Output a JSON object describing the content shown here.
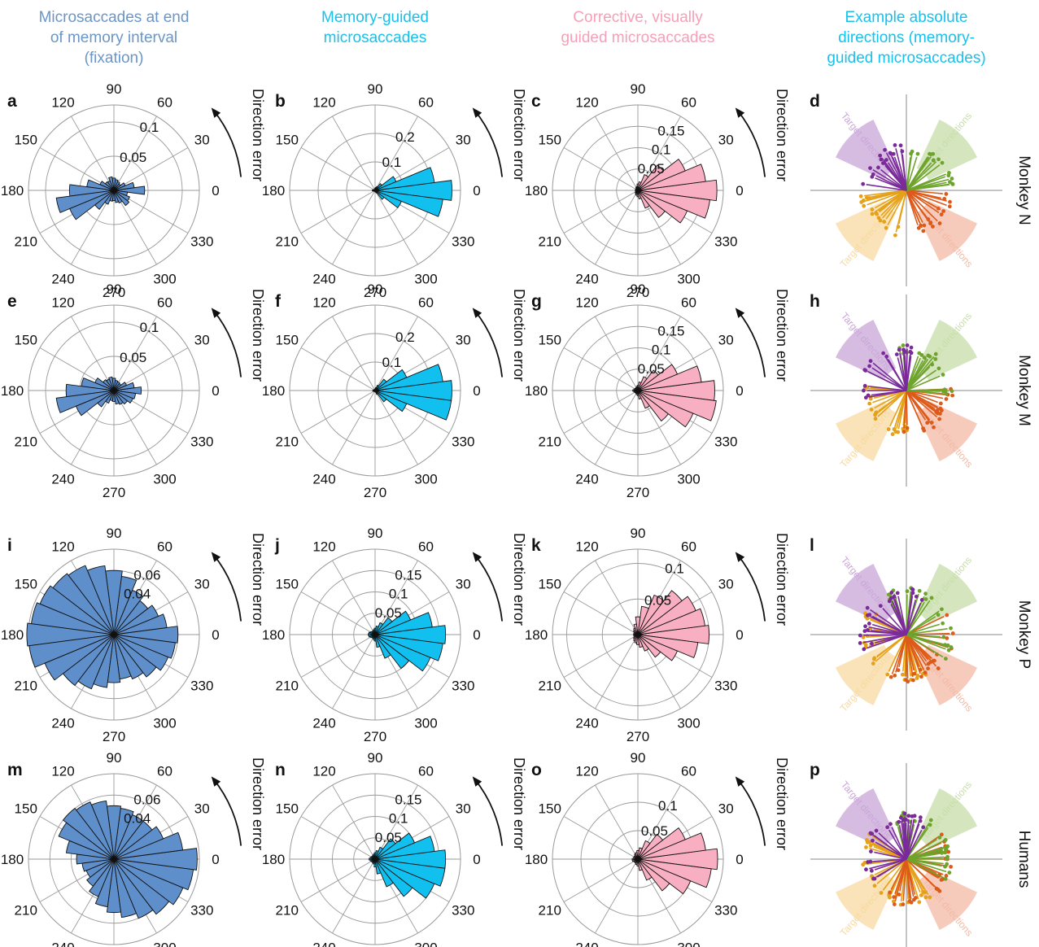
{
  "column_titles": [
    {
      "lines": [
        "Microsaccades at end",
        "of memory interval",
        "(fixation)"
      ],
      "color": "#6a96c8"
    },
    {
      "lines": [
        "Memory-guided",
        "microsaccades"
      ],
      "color": "#16c2ec"
    },
    {
      "lines": [
        "Corrective, visually",
        "guided microsaccades"
      ],
      "color": "#f5a0b8"
    },
    {
      "lines": [
        "Example absolute",
        "directions (memory-",
        "guided microsaccades)"
      ],
      "color": "#16c2ec"
    }
  ],
  "row_labels": [
    "Monkey N",
    "Monkey M",
    "Monkey P",
    "Humans"
  ],
  "panel_letters": [
    "a",
    "b",
    "c",
    "d",
    "e",
    "f",
    "g",
    "h",
    "i",
    "j",
    "k",
    "l",
    "m",
    "n",
    "o",
    "p"
  ],
  "angle_labels": [
    "0",
    "30",
    "60",
    "90",
    "120",
    "150",
    "180",
    "210",
    "240",
    "270",
    "300",
    "330"
  ],
  "direction_error_label": "Direction error",
  "target_label": "Target directions",
  "colors": {
    "fixation": "#5e8fcb",
    "memory": "#12c0ef",
    "corrective": "#f8afc2",
    "purple": "#7a2b99",
    "green": "#6ea32c",
    "orange": "#e5a119",
    "red": "#dd5b1a",
    "purple_wedge": "#c9a6d8",
    "green_wedge": "#c7deaa",
    "orange_wedge": "#f8d9a0",
    "red_wedge": "#f3b9a6",
    "grid": "#9a9a9a"
  },
  "chart_data": [
    {
      "panel": "a",
      "type": "polar-histogram",
      "series": "fixation",
      "rmax": 0.125,
      "rings": [
        0.05,
        0.1
      ],
      "bin_deg": 15,
      "values": [
        0.045,
        0.03,
        0.018,
        0.012,
        0.014,
        0.016,
        0.018,
        0.02,
        0.015,
        0.016,
        0.022,
        0.04,
        0.065,
        0.085,
        0.07,
        0.035,
        0.022,
        0.016,
        0.015,
        0.018,
        0.02,
        0.028,
        0.025,
        0.02
      ]
    },
    {
      "panel": "b",
      "type": "polar-histogram",
      "series": "memory",
      "rmax": 0.3,
      "rings": [
        0.1,
        0.2
      ],
      "bin_deg": 15,
      "values": [
        0.27,
        0.21,
        0.08,
        0.03,
        0.015,
        0.01,
        0.008,
        0.005,
        0.004,
        0.004,
        0.004,
        0.008,
        0.01,
        0.008,
        0.004,
        0.004,
        0.004,
        0.004,
        0.005,
        0.006,
        0.01,
        0.04,
        0.1,
        0.24
      ]
    },
    {
      "panel": "c",
      "type": "polar-histogram",
      "series": "corrective",
      "rmax": 0.2,
      "rings": [
        0.05,
        0.1,
        0.15
      ],
      "bin_deg": 15,
      "values": [
        0.185,
        0.16,
        0.12,
        0.075,
        0.04,
        0.02,
        0.015,
        0.01,
        0.008,
        0.006,
        0.006,
        0.006,
        0.006,
        0.006,
        0.006,
        0.008,
        0.01,
        0.012,
        0.015,
        0.02,
        0.045,
        0.08,
        0.125,
        0.17
      ]
    },
    {
      "panel": "d",
      "type": "direction-rose",
      "row": 0
    },
    {
      "panel": "e",
      "type": "polar-histogram",
      "series": "fixation",
      "rmax": 0.125,
      "rings": [
        0.05,
        0.1
      ],
      "bin_deg": 15,
      "values": [
        0.04,
        0.03,
        0.02,
        0.013,
        0.014,
        0.015,
        0.018,
        0.02,
        0.018,
        0.02,
        0.03,
        0.048,
        0.07,
        0.085,
        0.06,
        0.03,
        0.02,
        0.015,
        0.016,
        0.02,
        0.022,
        0.025,
        0.03,
        0.032
      ]
    },
    {
      "panel": "f",
      "type": "polar-histogram",
      "series": "memory",
      "rmax": 0.3,
      "rings": [
        0.1,
        0.2
      ],
      "bin_deg": 15,
      "values": [
        0.27,
        0.24,
        0.12,
        0.05,
        0.02,
        0.01,
        0.006,
        0.005,
        0.004,
        0.004,
        0.004,
        0.006,
        0.008,
        0.008,
        0.005,
        0.004,
        0.004,
        0.004,
        0.004,
        0.006,
        0.015,
        0.05,
        0.12,
        0.27
      ]
    },
    {
      "panel": "g",
      "type": "polar-histogram",
      "series": "corrective",
      "rmax": 0.2,
      "rings": [
        0.05,
        0.1,
        0.15
      ],
      "bin_deg": 15,
      "values": [
        0.18,
        0.15,
        0.1,
        0.06,
        0.035,
        0.02,
        0.012,
        0.01,
        0.008,
        0.008,
        0.008,
        0.01,
        0.012,
        0.01,
        0.008,
        0.008,
        0.008,
        0.01,
        0.012,
        0.02,
        0.045,
        0.09,
        0.14,
        0.185
      ]
    },
    {
      "panel": "h",
      "type": "direction-rose",
      "row": 1
    },
    {
      "panel": "i",
      "type": "polar-histogram",
      "series": "fixation",
      "rmax": 0.08,
      "rings": [
        0.04,
        0.06
      ],
      "bin_deg": 15,
      "values": [
        0.06,
        0.05,
        0.045,
        0.04,
        0.045,
        0.055,
        0.06,
        0.065,
        0.07,
        0.072,
        0.075,
        0.078,
        0.085,
        0.08,
        0.07,
        0.06,
        0.055,
        0.05,
        0.045,
        0.042,
        0.045,
        0.05,
        0.055,
        0.058
      ]
    },
    {
      "panel": "j",
      "type": "polar-histogram",
      "series": "memory",
      "rmax": 0.2,
      "rings": [
        0.05,
        0.1,
        0.15
      ],
      "bin_deg": 15,
      "values": [
        0.165,
        0.135,
        0.09,
        0.05,
        0.03,
        0.02,
        0.015,
        0.012,
        0.01,
        0.01,
        0.012,
        0.015,
        0.016,
        0.015,
        0.012,
        0.01,
        0.01,
        0.012,
        0.015,
        0.03,
        0.06,
        0.1,
        0.14,
        0.16
      ]
    },
    {
      "panel": "k",
      "type": "polar-histogram",
      "series": "corrective",
      "rmax": 0.12,
      "rings": [
        0.05,
        0.1
      ],
      "bin_deg": 15,
      "values": [
        0.1,
        0.095,
        0.088,
        0.078,
        0.06,
        0.04,
        0.025,
        0.015,
        0.01,
        0.008,
        0.006,
        0.006,
        0.006,
        0.006,
        0.006,
        0.008,
        0.01,
        0.012,
        0.014,
        0.018,
        0.025,
        0.04,
        0.06,
        0.085
      ]
    },
    {
      "panel": "l",
      "type": "direction-rose",
      "row": 2
    },
    {
      "panel": "m",
      "type": "polar-histogram",
      "series": "fixation",
      "rmax": 0.08,
      "rings": [
        0.04,
        0.06
      ],
      "bin_deg": 15,
      "values": [
        0.078,
        0.065,
        0.05,
        0.045,
        0.045,
        0.048,
        0.05,
        0.055,
        0.058,
        0.06,
        0.056,
        0.045,
        0.035,
        0.03,
        0.028,
        0.032,
        0.038,
        0.045,
        0.05,
        0.055,
        0.06,
        0.065,
        0.07,
        0.075
      ]
    },
    {
      "panel": "n",
      "type": "polar-histogram",
      "series": "memory",
      "rmax": 0.2,
      "rings": [
        0.05,
        0.1,
        0.15
      ],
      "bin_deg": 15,
      "values": [
        0.165,
        0.14,
        0.1,
        0.06,
        0.03,
        0.02,
        0.015,
        0.012,
        0.01,
        0.01,
        0.01,
        0.012,
        0.014,
        0.012,
        0.01,
        0.01,
        0.01,
        0.012,
        0.018,
        0.035,
        0.07,
        0.11,
        0.15,
        0.165
      ]
    },
    {
      "panel": "o",
      "type": "polar-histogram",
      "series": "corrective",
      "rmax": 0.15,
      "rings": [
        0.05,
        0.1
      ],
      "bin_deg": 15,
      "values": [
        0.14,
        0.12,
        0.09,
        0.055,
        0.035,
        0.02,
        0.015,
        0.012,
        0.01,
        0.008,
        0.008,
        0.008,
        0.01,
        0.01,
        0.008,
        0.008,
        0.008,
        0.01,
        0.012,
        0.02,
        0.04,
        0.07,
        0.1,
        0.13
      ]
    },
    {
      "panel": "p",
      "type": "direction-rose",
      "row": 3
    }
  ]
}
